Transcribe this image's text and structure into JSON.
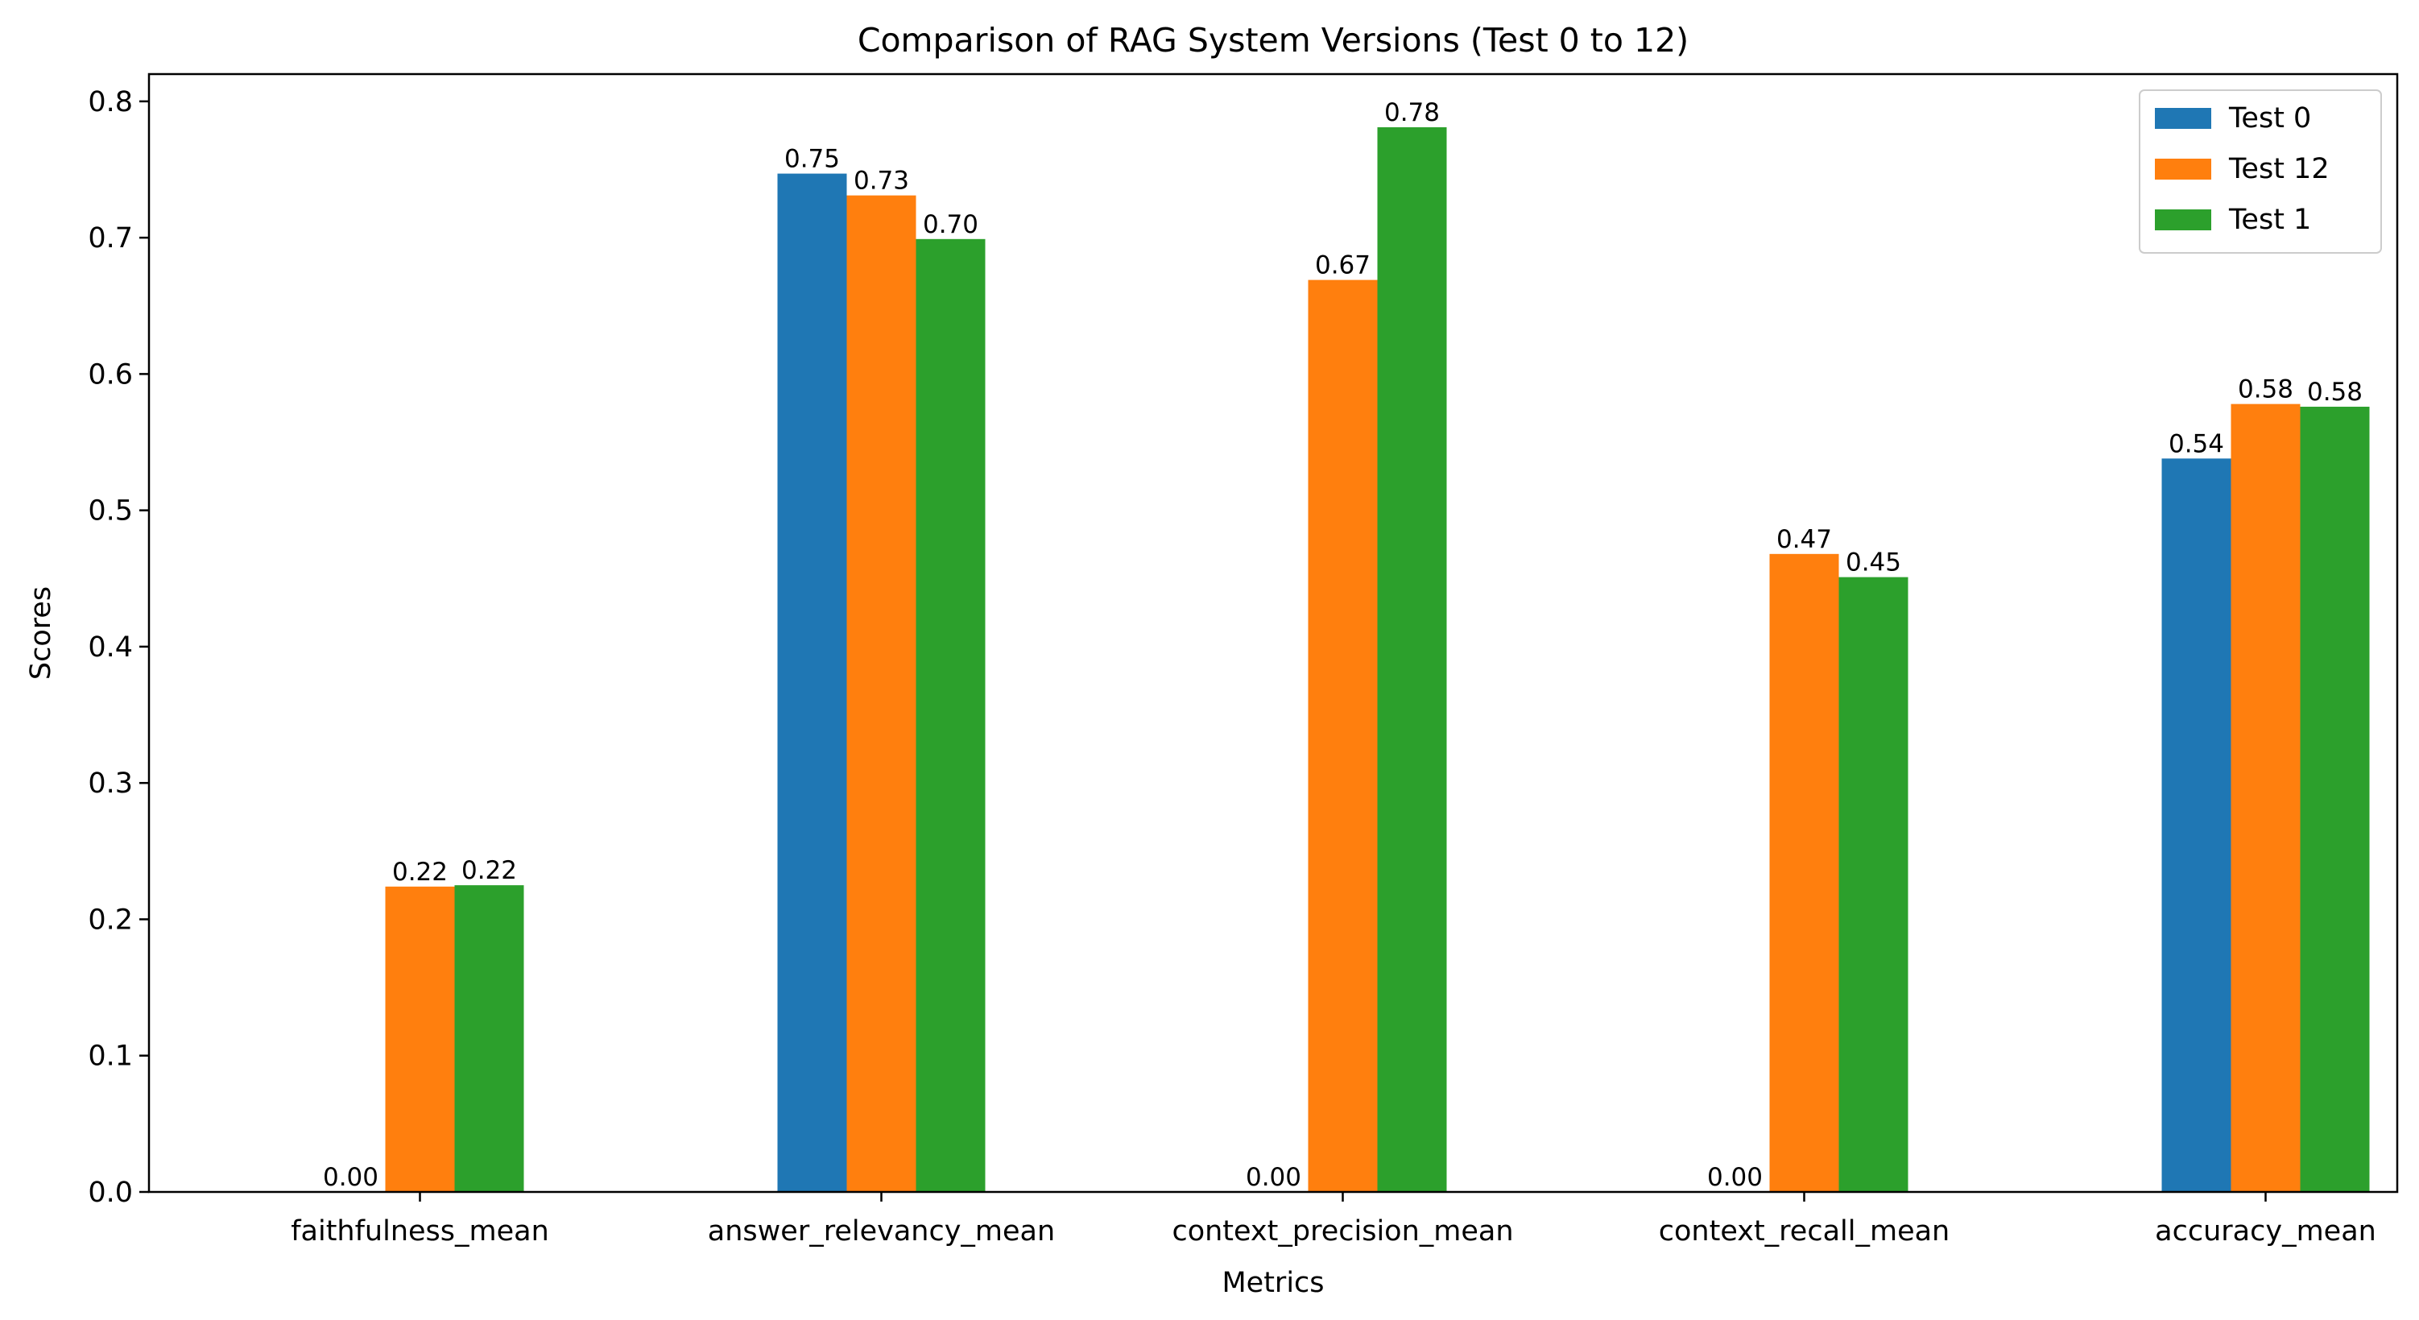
{
  "chart_data": {
    "type": "bar",
    "title": "Comparison of RAG System Versions (Test 0 to 12)",
    "xlabel": "Metrics",
    "ylabel": "Scores",
    "categories": [
      "faithfulness_mean",
      "answer_relevancy_mean",
      "context_precision_mean",
      "context_recall_mean",
      "accuracy_mean"
    ],
    "series": [
      {
        "name": "Test 0",
        "color": "#1f77b4",
        "values": [
          0.0,
          0.747,
          0.0,
          0.0,
          0.538
        ],
        "labels": [
          "0.00",
          "0.75",
          "0.00",
          "0.00",
          "0.54"
        ]
      },
      {
        "name": "Test 12",
        "color": "#ff7f0e",
        "values": [
          0.224,
          0.731,
          0.669,
          0.468,
          0.578
        ],
        "labels": [
          "0.22",
          "0.73",
          "0.67",
          "0.47",
          "0.58"
        ]
      },
      {
        "name": "Test 1",
        "color": "#2ca02c",
        "values": [
          0.225,
          0.699,
          0.781,
          0.451,
          0.576
        ],
        "labels": [
          "0.22",
          "0.70",
          "0.78",
          "0.45",
          "0.58"
        ]
      }
    ],
    "ylim": [
      0,
      0.82
    ],
    "yticks": [
      0.0,
      0.1,
      0.2,
      0.3,
      0.4,
      0.5,
      0.6,
      0.7,
      0.8
    ],
    "ytick_labels": [
      "0.0",
      "0.1",
      "0.2",
      "0.3",
      "0.4",
      "0.5",
      "0.6",
      "0.7",
      "0.8"
    ],
    "grid": false,
    "legend_position": "top-right"
  }
}
